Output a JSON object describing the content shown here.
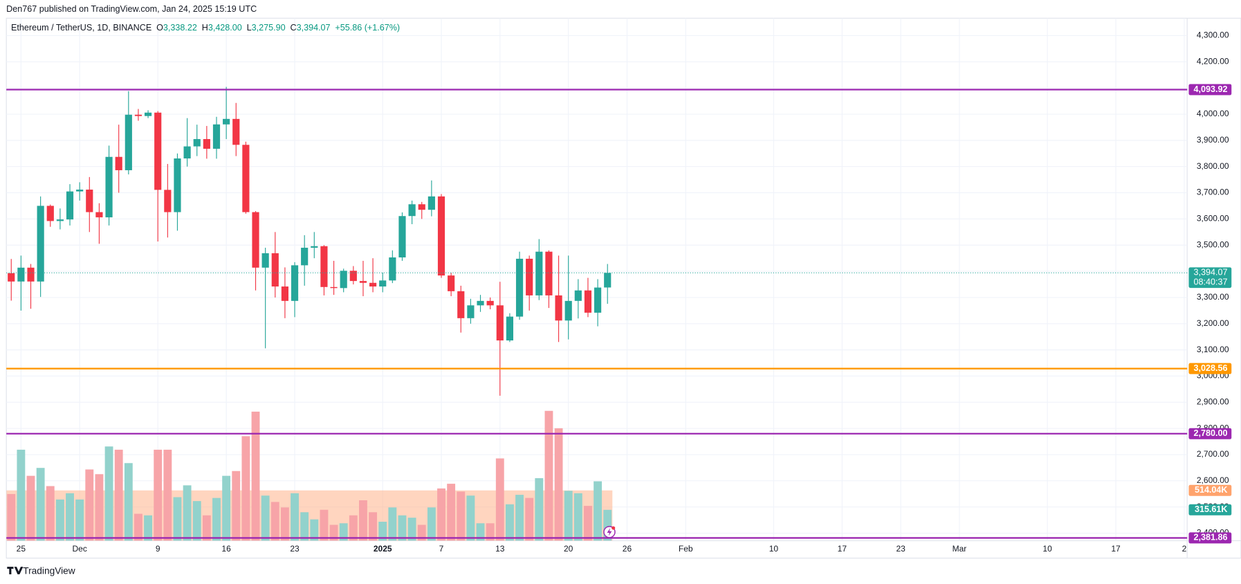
{
  "header": {
    "published": "Den767 published on TradingView.com, Jan 24, 2025 15:19 UTC"
  },
  "legend": {
    "symbol": "Ethereum / TetherUS, 1D, BINANCE",
    "open_key": "O",
    "open": "3,338.22",
    "high_key": "H",
    "high": "3,428.00",
    "low_key": "L",
    "low": "3,275.90",
    "close_key": "C",
    "close": "3,394.07",
    "change": "+55.86 (+1.67%)"
  },
  "footer": {
    "brand": "TradingView"
  },
  "chart_data": {
    "type": "candlestick",
    "x": [
      0,
      1,
      2,
      3,
      4,
      5,
      6,
      7,
      8,
      9,
      10,
      11,
      12,
      13,
      14,
      15,
      16,
      17,
      18,
      19,
      20,
      21,
      22,
      23,
      24,
      25,
      26,
      27,
      28,
      29,
      30,
      31,
      32,
      33,
      34,
      35,
      36,
      37,
      38,
      39,
      40,
      41,
      42,
      43,
      44,
      45,
      46,
      47,
      48,
      49,
      50,
      51,
      52,
      53,
      54,
      55,
      56,
      57,
      58,
      59,
      60,
      61
    ],
    "open": [
      3393,
      3361,
      3414,
      3361,
      3650,
      3592,
      3598,
      3705,
      3712,
      3626,
      3606,
      3837,
      3786,
      3998,
      3993,
      4006,
      3711,
      3626,
      3831,
      3877,
      3905,
      3868,
      3961,
      3982,
      3883,
      3626,
      3414,
      3469,
      3342,
      3287,
      3423,
      3490,
      3496,
      3340,
      3336,
      3402,
      3363,
      3356,
      3342,
      3365,
      3453,
      3611,
      3656,
      3635,
      3686,
      3384,
      3324,
      3221,
      3270,
      3287,
      3270,
      3136,
      3227,
      3448,
      3308,
      3475,
      3308,
      3212,
      3287,
      3327,
      3242,
      3338.22
    ],
    "high": [
      3447,
      3460,
      3428,
      3686,
      3655,
      3640,
      3733,
      3740,
      3760,
      3660,
      3880,
      3960,
      4088,
      4020,
      4015,
      4012,
      3810,
      3850,
      3985,
      3960,
      3955,
      3990,
      4104,
      4043,
      3895,
      3630,
      3490,
      3550,
      3415,
      3435,
      3538,
      3550,
      3500,
      3440,
      3410,
      3420,
      3440,
      3450,
      3395,
      3480,
      3625,
      3670,
      3665,
      3747,
      3695,
      3395,
      3345,
      3295,
      3310,
      3300,
      3360,
      3240,
      3475,
      3460,
      3523,
      3480,
      3460,
      3460,
      3370,
      3375,
      3370,
      3428.0
    ],
    "low": [
      3288,
      3250,
      3257,
      3302,
      3570,
      3560,
      3575,
      3670,
      3550,
      3505,
      3575,
      3700,
      3770,
      3975,
      3985,
      3514,
      3529,
      3555,
      3800,
      3840,
      3830,
      3830,
      3905,
      3840,
      3620,
      3327,
      3106,
      3300,
      3221,
      3225,
      3345,
      3450,
      3308,
      3310,
      3320,
      3350,
      3305,
      3320,
      3320,
      3355,
      3440,
      3580,
      3600,
      3610,
      3375,
      3305,
      3166,
      3200,
      3245,
      3255,
      2925,
      3130,
      3215,
      3250,
      3290,
      3260,
      3130,
      3140,
      3220,
      3225,
      3190,
      3275.9
    ],
    "close": [
      3361,
      3414,
      3361,
      3650,
      3592,
      3598,
      3705,
      3712,
      3626,
      3606,
      3837,
      3786,
      3998,
      3993,
      4006,
      3711,
      3626,
      3831,
      3877,
      3905,
      3868,
      3961,
      3982,
      3883,
      3626,
      3414,
      3469,
      3342,
      3287,
      3423,
      3490,
      3496,
      3340,
      3336,
      3402,
      3363,
      3356,
      3342,
      3365,
      3453,
      3611,
      3656,
      3635,
      3686,
      3384,
      3324,
      3221,
      3270,
      3287,
      3270,
      3136,
      3227,
      3448,
      3308,
      3475,
      3308,
      3212,
      3287,
      3327,
      3242,
      3338,
      3394.07
    ],
    "volume": [
      477,
      930,
      663,
      744,
      558,
      421,
      485,
      421,
      728,
      680,
      963,
      930,
      793,
      275,
      259,
      930,
      930,
      445,
      566,
      405,
      259,
      437,
      663,
      712,
      1068,
      1319,
      461,
      396,
      340,
      485,
      291,
      218,
      316,
      162,
      178,
      259,
      413,
      291,
      194,
      340,
      259,
      235,
      162,
      340,
      534,
      582,
      502,
      461,
      178,
      178,
      841,
      372,
      469,
      437,
      639,
      1327,
      1149,
      510,
      485,
      356,
      607,
      315.61
    ],
    "volume_value_label": "315.61K",
    "volume_ma": {
      "value": 514.04,
      "label": "514.04K"
    },
    "volume_ylim": [
      0,
      5340
    ],
    "up_color": "#26a69a",
    "down_color": "#f23645",
    "up_volume_color": "#92d2cc",
    "down_volume_color": "#f7a4a8",
    "volume_ma_color": "#ffb38a",
    "xlim": [
      -0.5,
      120.3
    ],
    "xticks": [
      {
        "value": 1,
        "label": "25"
      },
      {
        "value": 7,
        "label": "Dec"
      },
      {
        "value": 15,
        "label": "9"
      },
      {
        "value": 22,
        "label": "16"
      },
      {
        "value": 29,
        "label": "23"
      },
      {
        "value": 38,
        "label": "2025"
      },
      {
        "value": 44,
        "label": "7"
      },
      {
        "value": 50,
        "label": "13"
      },
      {
        "value": 57,
        "label": "20"
      },
      {
        "value": 63,
        "label": "26"
      },
      {
        "value": 69,
        "label": "Feb"
      },
      {
        "value": 78,
        "label": "10"
      },
      {
        "value": 85,
        "label": "17"
      },
      {
        "value": 91,
        "label": "23"
      },
      {
        "value": 97,
        "label": "Mar"
      },
      {
        "value": 106,
        "label": "10"
      },
      {
        "value": 113,
        "label": "17"
      },
      {
        "value": 120,
        "label": "2"
      }
    ],
    "ylim": [
      2371.3,
      4366.5
    ],
    "yticks": [
      {
        "value": 4300,
        "label": "4,300.00"
      },
      {
        "value": 4200,
        "label": "4,200.00"
      },
      {
        "value": 4100,
        "label": "4,100.00"
      },
      {
        "value": 4000,
        "label": "4,000.00"
      },
      {
        "value": 3900,
        "label": "3,900.00"
      },
      {
        "value": 3800,
        "label": "3,800.00"
      },
      {
        "value": 3700,
        "label": "3,700.00"
      },
      {
        "value": 3600,
        "label": "3,600.00"
      },
      {
        "value": 3500,
        "label": "3,500.00"
      },
      {
        "value": 3400,
        "label": "3,400.00"
      },
      {
        "value": 3300,
        "label": "3,300.00"
      },
      {
        "value": 3200,
        "label": "3,200.00"
      },
      {
        "value": 3100,
        "label": "3,100.00"
      },
      {
        "value": 3000,
        "label": "3,000.00"
      },
      {
        "value": 2900,
        "label": "2,900.00"
      },
      {
        "value": 2800,
        "label": "2,800.00"
      },
      {
        "value": 2700,
        "label": "2,700.00"
      },
      {
        "value": 2600,
        "label": "2,600.00"
      },
      {
        "value": 2500,
        "label": "2,500.00"
      },
      {
        "value": 2400,
        "label": "2,400.00"
      }
    ],
    "grid": true,
    "levels": [
      {
        "value": 4093.92,
        "label": "4,093.92",
        "color": "#9c27b0"
      },
      {
        "value": 3028.56,
        "label": "3,028.56",
        "color": "#ff9800"
      },
      {
        "value": 2780.0,
        "label": "2,780.00",
        "color": "#9c27b0"
      },
      {
        "value": 2381.86,
        "label": "2,381.86",
        "color": "#9c27b0"
      }
    ],
    "last_price": {
      "value": 3394.07,
      "label": "3,394.07",
      "countdown": "08:40:37",
      "color": "#26a69a"
    }
  }
}
